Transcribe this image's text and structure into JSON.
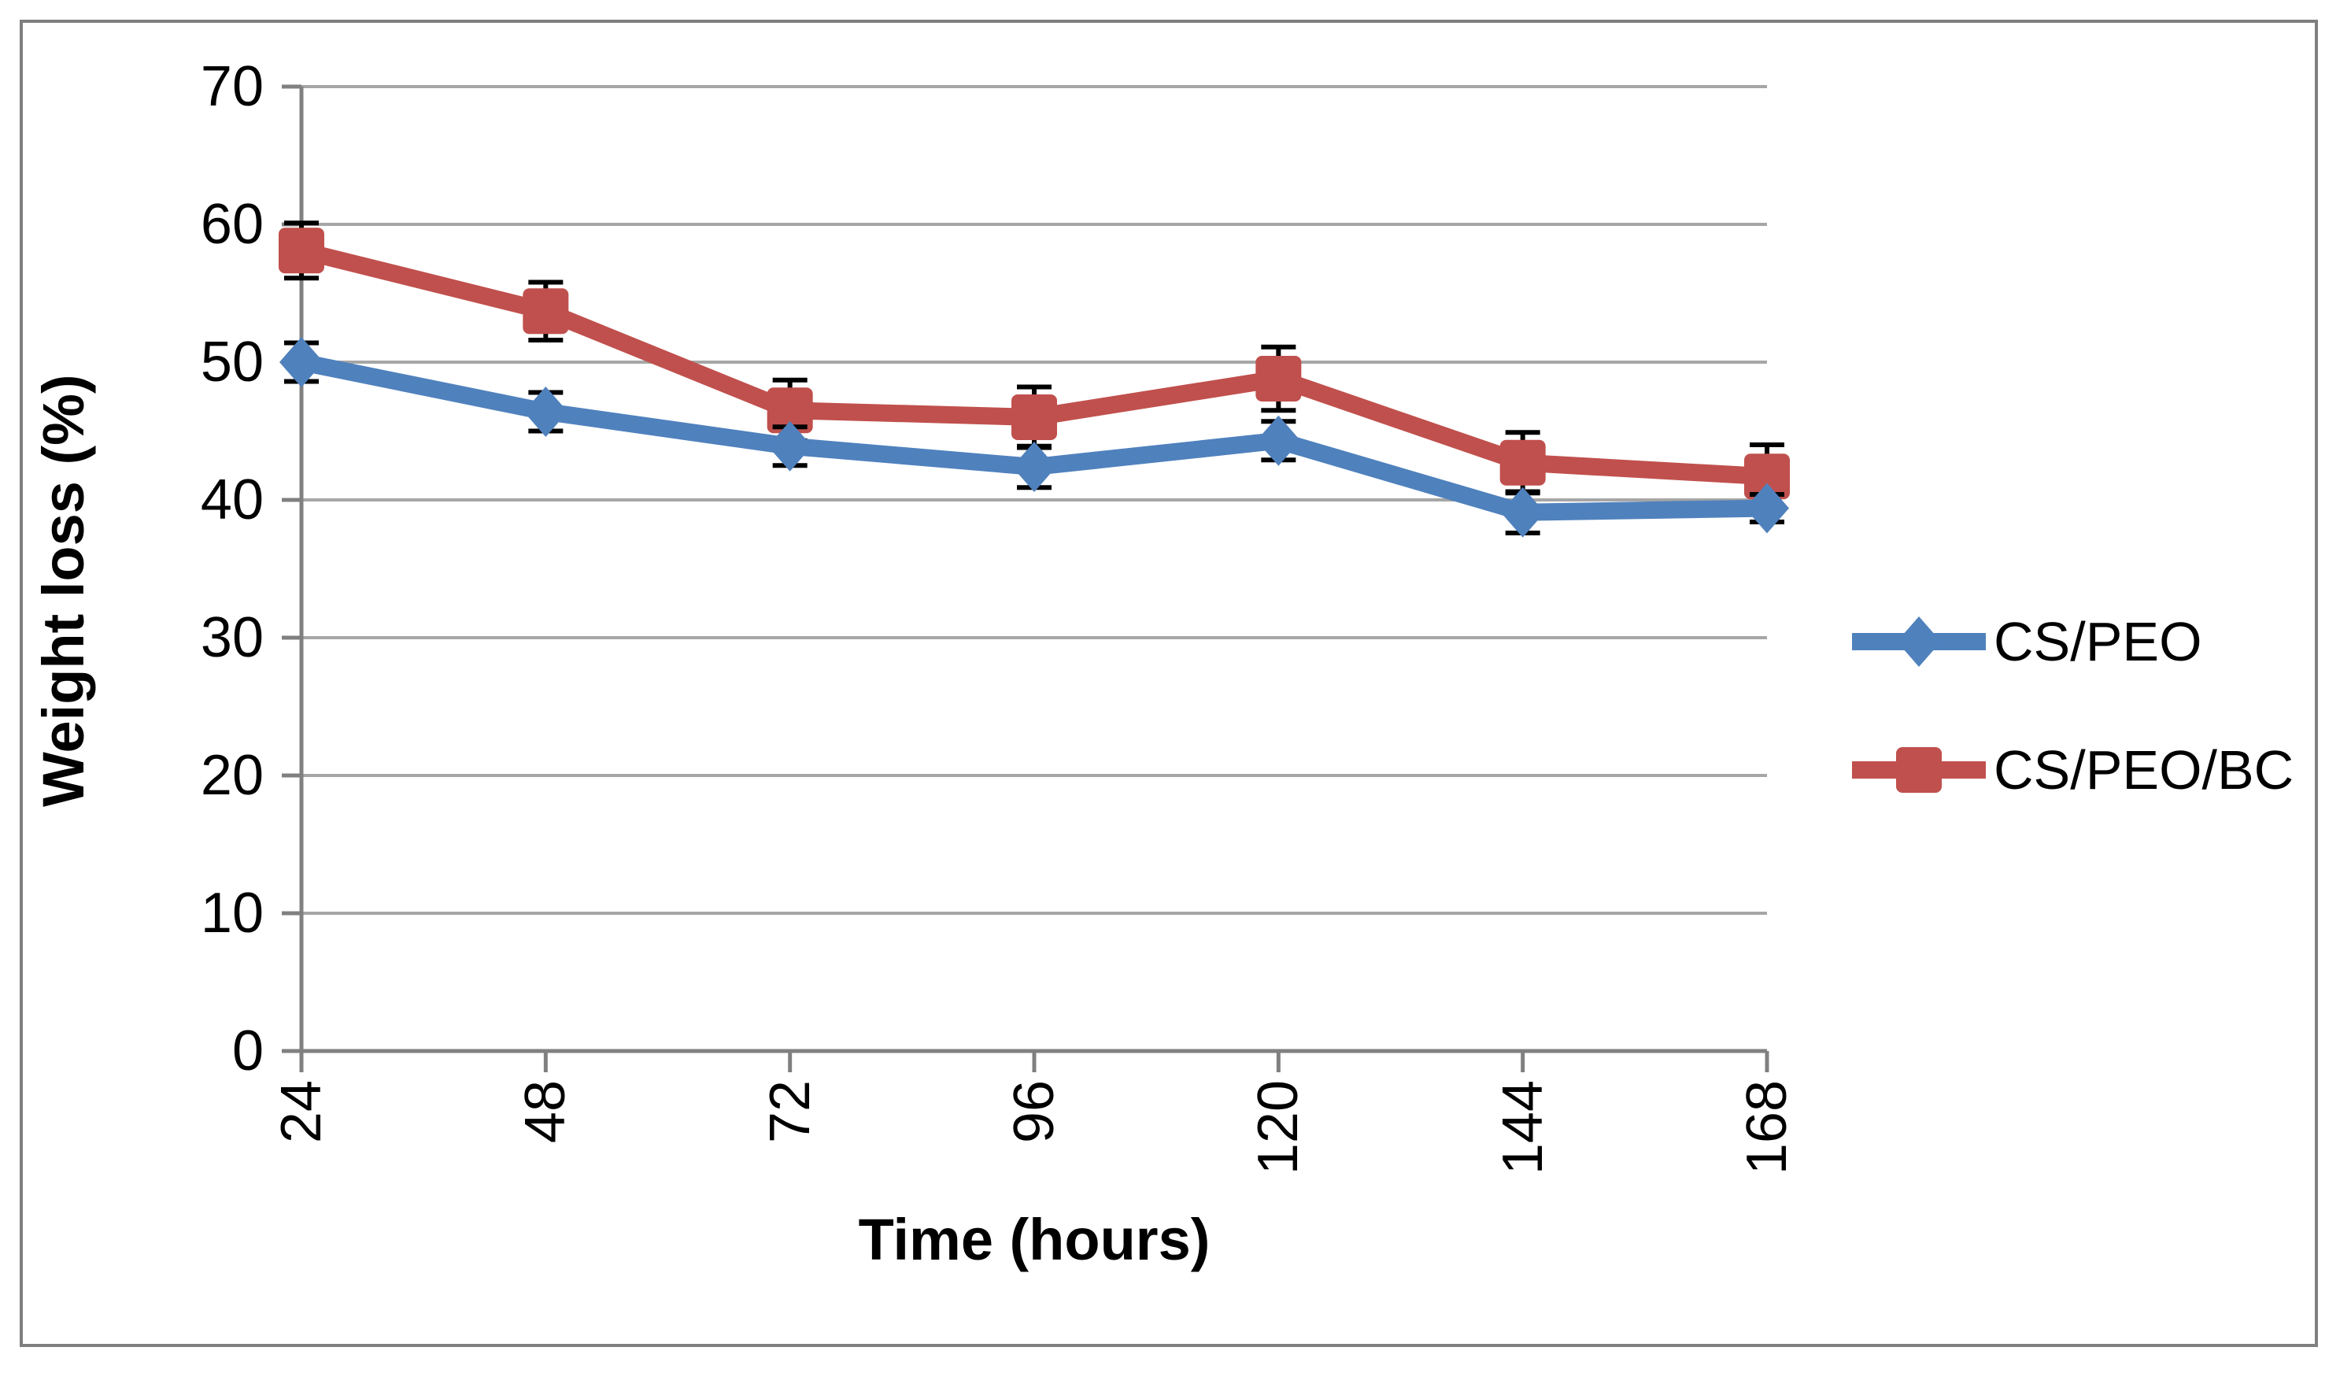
{
  "figure": {
    "border_color": "#7f7f7f",
    "background_color": "#ffffff"
  },
  "chart_data": {
    "type": "line",
    "title": "",
    "xlabel": "Time (hours)",
    "ylabel": "Weight loss (%)",
    "x": [
      24,
      48,
      72,
      96,
      120,
      144,
      168
    ],
    "x_tick_labels": [
      "24",
      "48",
      "72",
      "96",
      "120",
      "144",
      "168"
    ],
    "y_ticks": [
      0,
      10,
      20,
      30,
      40,
      50,
      60,
      70
    ],
    "xlim": [
      24,
      168
    ],
    "ylim": [
      0,
      70
    ],
    "grid": "horizontal-only",
    "x_tick_label_rotation_deg": 90,
    "legend_position": "right-middle",
    "gridline_color": "#a6a6a6",
    "axis_color": "#808080",
    "error_bar_color": "#000000",
    "series": [
      {
        "name": "CS/PEO",
        "color": "#4F81BD",
        "marker": "diamond",
        "values": [
          50.0,
          46.4,
          43.9,
          42.4,
          44.3,
          39.1,
          39.4
        ],
        "error": [
          1.4,
          1.4,
          1.4,
          1.5,
          1.4,
          1.5,
          1.0
        ]
      },
      {
        "name": "CS/PEO/BC",
        "color": "#C0504D",
        "marker": "square",
        "values": [
          58.1,
          53.7,
          46.5,
          46.0,
          48.8,
          42.7,
          41.7
        ],
        "error": [
          2.0,
          2.1,
          2.2,
          2.2,
          2.3,
          2.2,
          2.3
        ]
      }
    ]
  }
}
